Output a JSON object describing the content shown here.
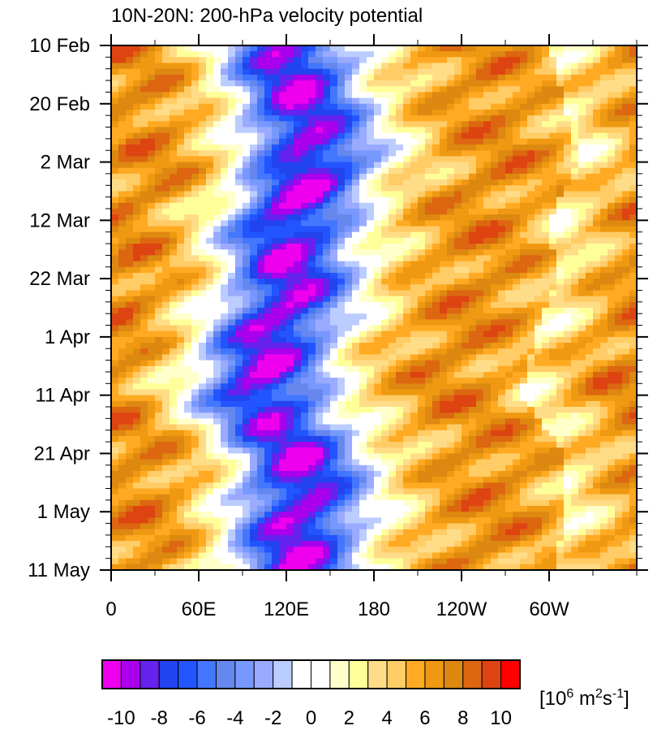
{
  "chart_data": {
    "type": "heatmap",
    "title": "10N-20N: 200-hPa velocity potential",
    "y_axis": {
      "tick_labels": [
        "10 Feb",
        "20 Feb",
        "2 Mar",
        "12 Mar",
        "22 Mar",
        "1 Apr",
        "11 Apr",
        "21 Apr",
        "1 May",
        "11 May"
      ],
      "range": [
        "10 Feb",
        "11 May"
      ],
      "direction": "top-to-bottom"
    },
    "x_axis": {
      "tick_labels": [
        "0",
        "60E",
        "120E",
        "180",
        "120W",
        "60W"
      ],
      "tick_values_deg_east": [
        0,
        60,
        120,
        180,
        240,
        300
      ],
      "range_deg_east": [
        0,
        360
      ]
    },
    "colorbar": {
      "tick_labels": [
        "-10",
        "-8",
        "-6",
        "-4",
        "-2",
        "0",
        "2",
        "4",
        "6",
        "8",
        "10"
      ],
      "unit_text": "[10",
      "unit_exp": "6",
      "unit_mid": " m",
      "unit_exp2": "2",
      "unit_mid2": "s",
      "unit_exp3": "-1",
      "unit_end": "]",
      "colors": [
        "#ee00ee",
        "#aa00ee",
        "#6622ee",
        "#2244ee",
        "#2255ff",
        "#4477ff",
        "#6688ee",
        "#7799ff",
        "#99aaff",
        "#bbccff",
        "#ffffff",
        "#ffffff",
        "#ffffcc",
        "#ffff99",
        "#ffdd88",
        "#ffcc66",
        "#ffaa22",
        "#ee9911",
        "#dd8811",
        "#dd6611",
        "#dd4411",
        "#ff0000"
      ],
      "levels": [
        -10,
        -9,
        -8,
        -7,
        -6,
        -5,
        -4,
        -3,
        -2,
        -1,
        0,
        1,
        2,
        3,
        4,
        5,
        6,
        7,
        8,
        9,
        10
      ]
    },
    "pattern": {
      "description_values": "Negative anomalies (blue/purple) centered near 100E-150E propagating eastward; positive anomalies (orange/red) elsewhere.",
      "anomaly_core_lon_deg_east": [
        120,
        130,
        140,
        120,
        125,
        110,
        100,
        130,
        130,
        125
      ],
      "date_index": [
        0,
        10,
        20,
        30,
        40,
        50,
        60,
        70,
        80,
        90
      ]
    }
  }
}
